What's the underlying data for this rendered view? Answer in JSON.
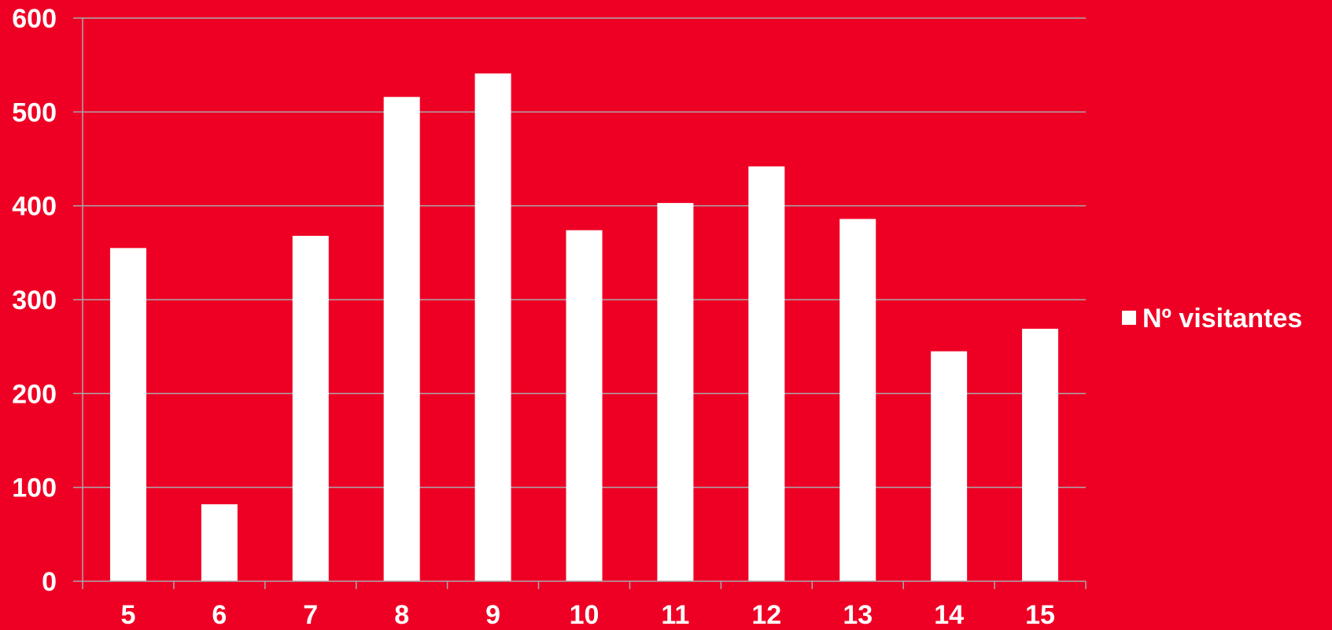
{
  "colors": {
    "background": "#EE0024",
    "bar": "#FFFFFF",
    "gridline": "#A7A9AC",
    "text": "#FFFFFF"
  },
  "chart_data": {
    "type": "bar",
    "categories": [
      "5",
      "6",
      "7",
      "8",
      "9",
      "10",
      "11",
      "12",
      "13",
      "14",
      "15"
    ],
    "series": [
      {
        "name": "Nº visitantes",
        "values": [
          355,
          82,
          368,
          516,
          541,
          374,
          403,
          442,
          386,
          245,
          269
        ]
      }
    ],
    "y_ticks": [
      "0",
      "100",
      "200",
      "300",
      "400",
      "500",
      "600"
    ],
    "ylim": [
      0,
      600
    ],
    "title": "",
    "xlabel": "",
    "ylabel": "",
    "grid": true,
    "legend_position": "right"
  }
}
